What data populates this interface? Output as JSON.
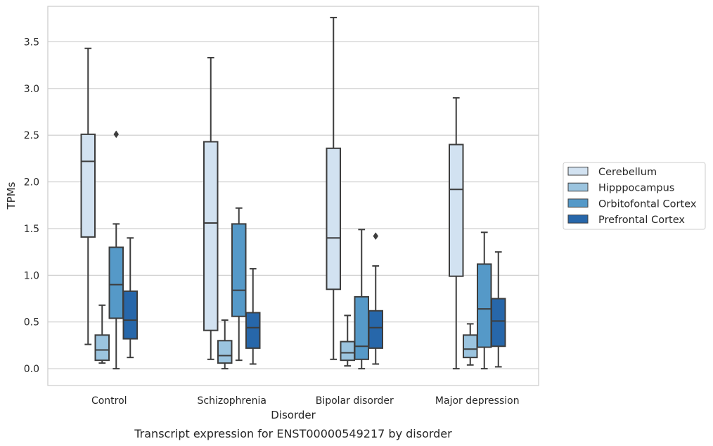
{
  "chart_data": {
    "type": "box",
    "caption": "Transcript expression for ENST00000549217 by disorder",
    "xlabel": "Disorder",
    "ylabel": "TPMs",
    "ylim": [
      -0.18,
      3.88
    ],
    "yticks": [
      0.0,
      0.5,
      1.0,
      1.5,
      2.0,
      2.5,
      3.0,
      3.5
    ],
    "ytick_labels": [
      "0.0",
      "0.5",
      "1.0",
      "1.5",
      "2.0",
      "2.5",
      "3.0",
      "3.5"
    ],
    "grid": "horizontal",
    "legend_position": "right",
    "categories": [
      "Control",
      "Schizophrenia",
      "Bipolar disorder",
      "Major depression"
    ],
    "series": [
      {
        "name": "Cerebellum",
        "color": "#d2e2f1",
        "boxes": [
          {
            "whisker_low": 0.26,
            "q1": 1.41,
            "median": 2.22,
            "q3": 2.51,
            "whisker_high": 3.43,
            "outliers": []
          },
          {
            "whisker_low": 0.1,
            "q1": 0.41,
            "median": 1.56,
            "q3": 2.43,
            "whisker_high": 3.33,
            "outliers": []
          },
          {
            "whisker_low": 0.1,
            "q1": 0.85,
            "median": 1.4,
            "q3": 2.36,
            "whisker_high": 3.76,
            "outliers": []
          },
          {
            "whisker_low": 0.0,
            "q1": 0.99,
            "median": 1.92,
            "q3": 2.4,
            "whisker_high": 2.9,
            "outliers": []
          }
        ]
      },
      {
        "name": "Hipppocampus",
        "color": "#9bc4df",
        "boxes": [
          {
            "whisker_low": 0.06,
            "q1": 0.09,
            "median": 0.2,
            "q3": 0.36,
            "whisker_high": 0.68,
            "outliers": []
          },
          {
            "whisker_low": 0.0,
            "q1": 0.06,
            "median": 0.14,
            "q3": 0.3,
            "whisker_high": 0.52,
            "outliers": []
          },
          {
            "whisker_low": 0.03,
            "q1": 0.09,
            "median": 0.17,
            "q3": 0.29,
            "whisker_high": 0.57,
            "outliers": []
          },
          {
            "whisker_low": 0.04,
            "q1": 0.12,
            "median": 0.21,
            "q3": 0.36,
            "whisker_high": 0.48,
            "outliers": []
          }
        ]
      },
      {
        "name": "Orbitofontal Cortex",
        "color": "#5599c8",
        "boxes": [
          {
            "whisker_low": 0.0,
            "q1": 0.54,
            "median": 0.9,
            "q3": 1.3,
            "whisker_high": 1.55,
            "outliers": [
              2.51
            ]
          },
          {
            "whisker_low": 0.09,
            "q1": 0.56,
            "median": 0.84,
            "q3": 1.55,
            "whisker_high": 1.72,
            "outliers": []
          },
          {
            "whisker_low": 0.0,
            "q1": 0.1,
            "median": 0.24,
            "q3": 0.77,
            "whisker_high": 1.49,
            "outliers": []
          },
          {
            "whisker_low": 0.0,
            "q1": 0.23,
            "median": 0.64,
            "q3": 1.12,
            "whisker_high": 1.46,
            "outliers": []
          }
        ]
      },
      {
        "name": "Prefrontal Cortex",
        "color": "#2767aa",
        "boxes": [
          {
            "whisker_low": 0.12,
            "q1": 0.32,
            "median": 0.52,
            "q3": 0.83,
            "whisker_high": 1.4,
            "outliers": []
          },
          {
            "whisker_low": 0.05,
            "q1": 0.22,
            "median": 0.44,
            "q3": 0.6,
            "whisker_high": 1.07,
            "outliers": []
          },
          {
            "whisker_low": 0.05,
            "q1": 0.22,
            "median": 0.44,
            "q3": 0.62,
            "whisker_high": 1.1,
            "outliers": [
              1.42
            ]
          },
          {
            "whisker_low": 0.02,
            "q1": 0.24,
            "median": 0.51,
            "q3": 0.75,
            "whisker_high": 1.25,
            "outliers": []
          }
        ]
      }
    ]
  }
}
